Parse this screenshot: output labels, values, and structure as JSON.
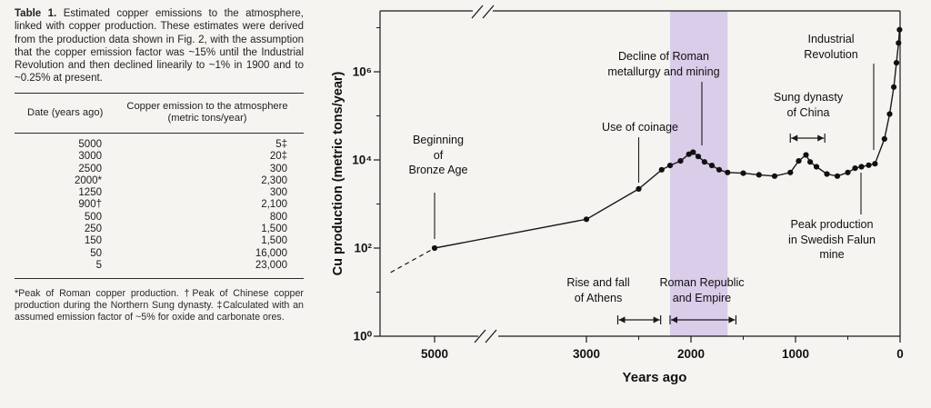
{
  "table": {
    "caption_label": "Table 1.",
    "caption_text": " Estimated copper emissions to the atmosphere, linked with copper production. These estimates were derived from the production data shown in Fig. 2, with the assumption that the copper emission factor was ~15% until the Industrial Revolution and then declined linearily to ~1% in 1900 and to ~0.25% at present.",
    "col1_header": "Date (years ago)",
    "col2_header": "Copper emission to the atmosphere (metric tons/year)",
    "rows": [
      [
        "5000",
        "5‡"
      ],
      [
        "3000",
        "20‡"
      ],
      [
        "2500",
        "300"
      ],
      [
        "2000*",
        "2,300"
      ],
      [
        "1250",
        "300"
      ],
      [
        "900†",
        "2,100"
      ],
      [
        "500",
        "800"
      ],
      [
        "250",
        "1,500"
      ],
      [
        "150",
        "1,500"
      ],
      [
        "50",
        "16,000"
      ],
      [
        "5",
        "23,000"
      ]
    ],
    "footnote_text": "*Peak of Roman copper production.   †Peak of Chinese copper production during the Northern Sung dynasty.   ‡Calculated with an assumed emission factor of ~5% for oxide and carbonate ores."
  },
  "chart_data": {
    "type": "line",
    "title": "",
    "xlabel": "Years ago",
    "ylabel": "Cu production (metric tons/year)",
    "y_scale": "log",
    "x_axis_reversed": true,
    "x_axis_break": {
      "left_years": 4650,
      "right_years": 3800
    },
    "xlim": [
      5520,
      0
    ],
    "ylim": [
      1,
      16000000
    ],
    "x_ticks": [
      5000,
      3000,
      2000,
      1000,
      0
    ],
    "x_tick_labels": [
      "5000",
      "3000",
      "2000",
      "1000",
      "0"
    ],
    "x_minor_ticks": [
      2500,
      1500,
      500
    ],
    "y_tick_exponents": [
      0,
      2,
      4,
      6
    ],
    "y_tick_labels": [
      "10⁰",
      "10²",
      "10⁴",
      "10⁶"
    ],
    "y_minor_tick_exponents": [
      1,
      3,
      5,
      7
    ],
    "grid": false,
    "line_color": "#1a1a1a",
    "band": {
      "label": "Roman Republic and Empire",
      "start_years_ago": 2200,
      "end_years_ago": 1650,
      "color": "#c7b3e6"
    },
    "periods": {
      "athens": {
        "label": "Rise and fall of Athens",
        "from_years_ago": 2700,
        "to_years_ago": 2290
      },
      "roman": {
        "label": "Roman Republic and Empire",
        "from_years_ago": 2200,
        "to_years_ago": 1570
      },
      "sung": {
        "label": "Sung dynasty of China",
        "from_years_ago": 1050,
        "to_years_ago": 720
      }
    },
    "dashed_lead": [
      [
        5420,
        28
      ],
      [
        5000,
        100
      ]
    ],
    "series": [
      {
        "name": "Cu production (metric tons/year)",
        "points_years_ago_vs_tons": [
          [
            5000,
            100
          ],
          [
            3000,
            450
          ],
          [
            2500,
            2200
          ],
          [
            2280,
            6000
          ],
          [
            2200,
            7500
          ],
          [
            2100,
            9500
          ],
          [
            2020,
            13500
          ],
          [
            1980,
            15000
          ],
          [
            1930,
            12000
          ],
          [
            1870,
            9000
          ],
          [
            1800,
            7500
          ],
          [
            1730,
            6000
          ],
          [
            1650,
            5200
          ],
          [
            1500,
            5000
          ],
          [
            1350,
            4600
          ],
          [
            1200,
            4300
          ],
          [
            1050,
            5200
          ],
          [
            970,
            9500
          ],
          [
            900,
            13000
          ],
          [
            860,
            9000
          ],
          [
            800,
            7000
          ],
          [
            700,
            4800
          ],
          [
            600,
            4300
          ],
          [
            500,
            5200
          ],
          [
            430,
            6500
          ],
          [
            370,
            7000
          ],
          [
            300,
            7600
          ],
          [
            240,
            8200
          ],
          [
            150,
            30000
          ],
          [
            100,
            110000
          ],
          [
            60,
            450000
          ],
          [
            35,
            1600000
          ],
          [
            15,
            4500000
          ],
          [
            5,
            9000000
          ]
        ]
      }
    ],
    "annotations": {
      "bronze": "Beginning\nof\nBronze Age",
      "coinage": "Use of coinage",
      "roman_decline": "Decline of Roman\nmetallurgy and mining",
      "sung": "Sung dynasty\nof China",
      "industrial": "Industrial\nRevolution",
      "falun": "Peak production\nin Swedish Falun mine",
      "athens": "Rise and fall\nof Athens",
      "roman_span": "Roman Republic\nand Empire"
    }
  }
}
